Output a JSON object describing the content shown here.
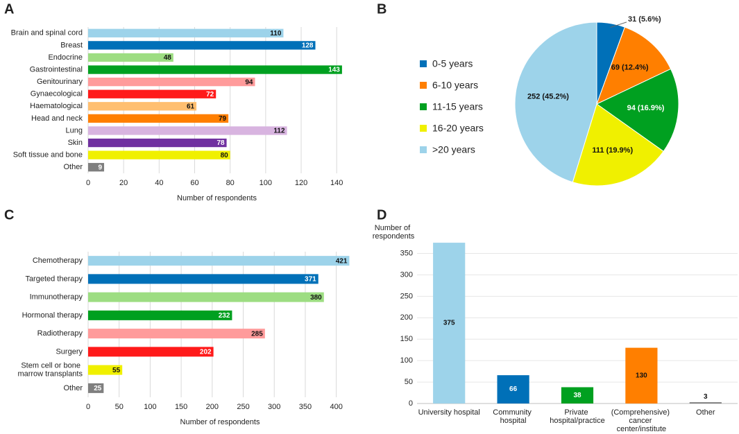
{
  "chart_data": [
    {
      "type": "bar",
      "orientation": "horizontal",
      "panel": "A",
      "categories": [
        "Brain and spinal cord",
        "Breast",
        "Endocrine",
        "Gastrointestinal",
        "Genitourinary",
        "Gynaecological",
        "Haematological",
        "Head and neck",
        "Lung",
        "Skin",
        "Soft tissue and bone",
        "Other"
      ],
      "values": [
        110,
        128,
        48,
        143,
        94,
        72,
        61,
        79,
        112,
        78,
        80,
        9
      ],
      "colors": [
        "#9dd3ea",
        "#0070b8",
        "#9ddd82",
        "#00a020",
        "#ff9b9b",
        "#ff1a1a",
        "#ffbf70",
        "#ff7f00",
        "#d8b4e0",
        "#7030a0",
        "#f0f000",
        "#7f7f7f"
      ],
      "xlabel": "Number of respondents",
      "xlim": [
        0,
        145
      ],
      "xticks": [
        0,
        20,
        40,
        60,
        80,
        100,
        120,
        140
      ],
      "grid": true
    },
    {
      "type": "pie",
      "panel": "B",
      "categories": [
        "0-5 years",
        "6-10 years",
        "11-15 years",
        "16-20 years",
        ">20 years"
      ],
      "values": [
        31,
        69,
        94,
        111,
        252
      ],
      "value_labels": [
        "31 (5.6%)",
        "69 (12.4%)",
        "94 (16.9%)",
        "111 (19.9%)",
        "252 (45.2%)"
      ],
      "colors": [
        "#0070b8",
        "#ff7f00",
        "#00a020",
        "#f0f000",
        "#9dd3ea"
      ],
      "legend": "left"
    },
    {
      "type": "bar",
      "orientation": "horizontal",
      "panel": "C",
      "categories": [
        "Chemotherapy",
        "Targeted therapy",
        "Immunotherapy",
        "Hormonal therapy",
        "Radiotherapy",
        "Surgery",
        "Stem cell or bone\nmarrow transplants",
        "Other"
      ],
      "values": [
        421,
        371,
        380,
        232,
        285,
        202,
        55,
        25
      ],
      "colors": [
        "#9dd3ea",
        "#0070b8",
        "#9ddd82",
        "#00a020",
        "#ff9b9b",
        "#ff1a1a",
        "#f0f000",
        "#7f7f7f"
      ],
      "xlabel": "Number of respondents",
      "xlim": [
        0,
        425
      ],
      "xticks": [
        0,
        50,
        100,
        150,
        200,
        250,
        300,
        350,
        400
      ],
      "grid": true
    },
    {
      "type": "bar",
      "orientation": "vertical",
      "panel": "D",
      "categories": [
        "University hospital",
        "Community\nhospital",
        "Private\nhospital/practice",
        "(Comprehensive)\ncancer\ncenter/institute",
        "Other"
      ],
      "values": [
        375,
        66,
        38,
        130,
        3
      ],
      "colors": [
        "#9dd3ea",
        "#0070b8",
        "#00a020",
        "#ff7f00",
        "#7f7f7f"
      ],
      "ylabel": "Number of\nrespondents",
      "ylim": [
        0,
        380
      ],
      "yticks": [
        0,
        50,
        100,
        150,
        200,
        250,
        300,
        350
      ],
      "grid": true
    }
  ]
}
